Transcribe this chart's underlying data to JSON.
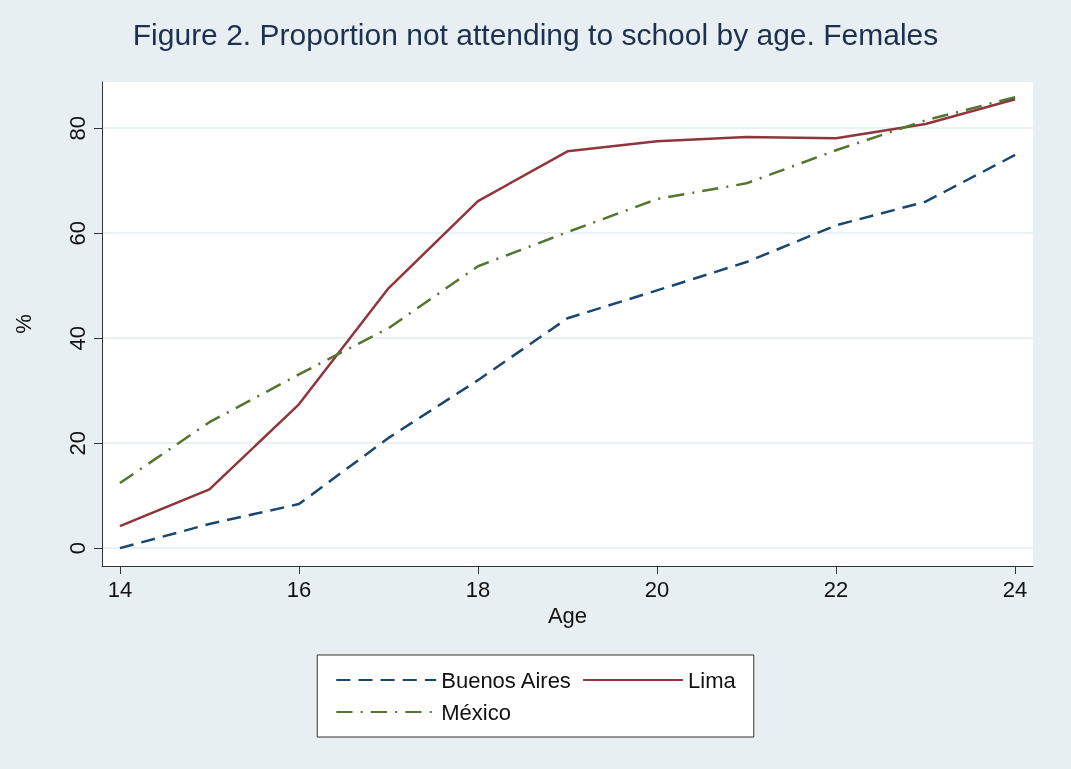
{
  "chart_data": {
    "type": "line",
    "title": "Figure 2. Proportion not attending to school by age. Females",
    "xlabel": "Age",
    "ylabel": "%",
    "x": [
      14,
      15,
      16,
      17,
      18,
      19,
      20,
      21,
      22,
      23,
      24
    ],
    "series": [
      {
        "name": "Buenos Aires",
        "color": "#1a476f",
        "line_style": "dashed",
        "values": [
          0,
          4.6,
          8.4,
          21,
          32,
          43.8,
          49.1,
          54.5,
          61.5,
          66,
          74.9
        ]
      },
      {
        "name": "Lima",
        "color": "#90353b",
        "line_style": "solid",
        "values": [
          4.2,
          11.2,
          27.4,
          49.5,
          66.1,
          75.6,
          77.5,
          78.3,
          78.1,
          80.8,
          85.5
        ]
      },
      {
        "name": "México",
        "color": "#55752f",
        "line_style": "dashdot",
        "values": [
          12.4,
          24,
          33.1,
          41.9,
          53.7,
          60.2,
          66.5,
          69.5,
          75.8,
          81.5,
          85.9
        ]
      }
    ],
    "xlim": [
      13.8,
      24.2
    ],
    "xticks": [
      14,
      16,
      18,
      20,
      22,
      24
    ],
    "ylim": [
      -3.4,
      88.8
    ],
    "yticks": [
      0,
      20,
      40,
      60,
      80
    ],
    "grid": "y",
    "legend": "bottom",
    "marker": "none"
  }
}
